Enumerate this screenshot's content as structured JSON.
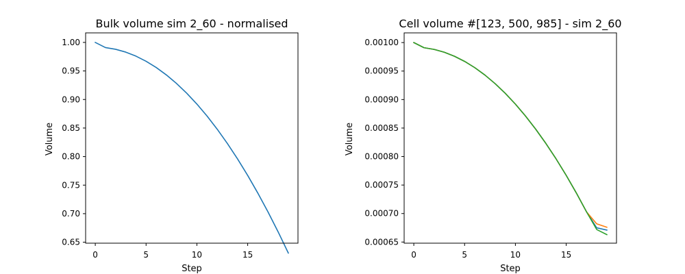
{
  "chart_data": [
    {
      "type": "line",
      "title": "Bulk volume sim 2_60 - normalised",
      "xlabel": "Step",
      "ylabel": "Volume",
      "xlim": [
        -0.95,
        19.95
      ],
      "ylim": [
        0.6483,
        1.0167
      ],
      "x_ticks": [
        0,
        5,
        10,
        15
      ],
      "x_tick_labels": [
        "0",
        "5",
        "10",
        "15"
      ],
      "y_ticks": [
        0.65,
        0.7,
        0.75,
        0.8,
        0.85,
        0.9,
        0.95,
        1.0
      ],
      "y_tick_labels": [
        "0.65",
        "0.70",
        "0.75",
        "0.80",
        "0.85",
        "0.90",
        "0.95",
        "1.00"
      ],
      "grid": false,
      "x": [
        0,
        1,
        2,
        3,
        4,
        5,
        6,
        7,
        8,
        9,
        10,
        11,
        12,
        13,
        14,
        15,
        16,
        17,
        18,
        19
      ],
      "series": [
        {
          "color": "#1f77b4",
          "values": [
            1.0,
            0.991,
            0.988,
            0.983,
            0.976,
            0.967,
            0.956,
            0.943,
            0.928,
            0.911,
            0.892,
            0.871,
            0.848,
            0.823,
            0.796,
            0.767,
            0.736,
            0.703,
            0.668,
            0.631
          ]
        }
      ]
    },
    {
      "type": "line",
      "title": "Cell volume #[123, 500, 985] - sim 2_60",
      "xlabel": "Step",
      "ylabel": "Volume",
      "xlim": [
        -0.95,
        19.95
      ],
      "ylim": [
        0.000648,
        0.001017
      ],
      "x_ticks": [
        0,
        5,
        10,
        15
      ],
      "x_tick_labels": [
        "0",
        "5",
        "10",
        "15"
      ],
      "y_ticks": [
        0.00065,
        0.0007,
        0.00075,
        0.0008,
        0.00085,
        0.0009,
        0.00095,
        0.001
      ],
      "y_tick_labels": [
        "0.00065",
        "0.00070",
        "0.00075",
        "0.00080",
        "0.00085",
        "0.00090",
        "0.00095",
        "0.00100"
      ],
      "grid": false,
      "x": [
        0,
        1,
        2,
        3,
        4,
        5,
        6,
        7,
        8,
        9,
        10,
        11,
        12,
        13,
        14,
        15,
        16,
        17,
        18,
        19
      ],
      "series": [
        {
          "color": "#1f77b4",
          "values": [
            0.001,
            0.000991,
            0.000988,
            0.000983,
            0.000976,
            0.000967,
            0.000956,
            0.000943,
            0.000928,
            0.000911,
            0.000892,
            0.000871,
            0.000848,
            0.000823,
            0.000796,
            0.000767,
            0.000736,
            0.000703,
            0.000675,
            0.000671
          ]
        },
        {
          "color": "#ff7f0e",
          "values": [
            0.001,
            0.000991,
            0.000988,
            0.000983,
            0.000976,
            0.000967,
            0.000956,
            0.000943,
            0.000928,
            0.000911,
            0.000892,
            0.000871,
            0.000848,
            0.000823,
            0.000796,
            0.000767,
            0.000736,
            0.000703,
            0.000682,
            0.000676
          ]
        },
        {
          "color": "#2ca02c",
          "values": [
            0.001,
            0.000991,
            0.000988,
            0.000983,
            0.000976,
            0.000967,
            0.000956,
            0.000943,
            0.000928,
            0.000911,
            0.000892,
            0.000871,
            0.000848,
            0.000823,
            0.000796,
            0.000767,
            0.000736,
            0.000703,
            0.000672,
            0.000663
          ]
        }
      ]
    }
  ]
}
